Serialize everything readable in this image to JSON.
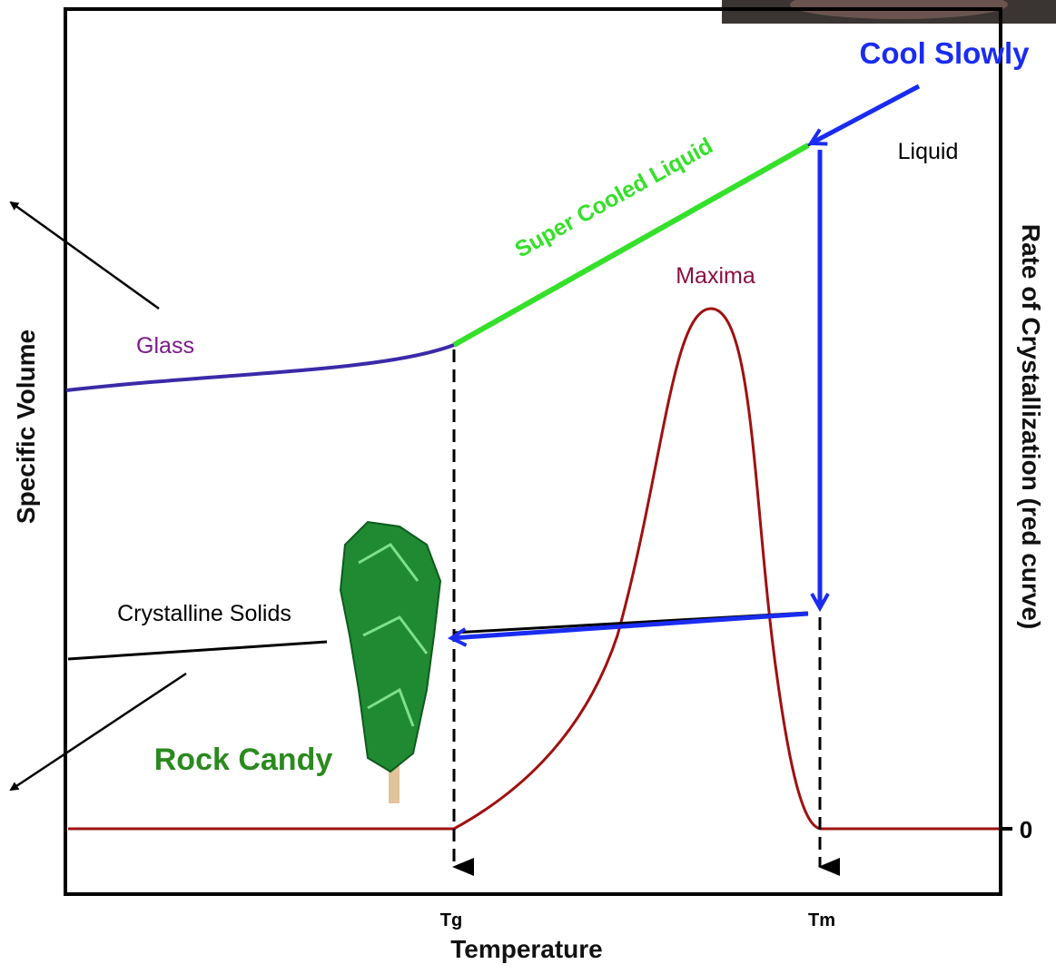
{
  "axes": {
    "x_label": "Temperature",
    "y_label": "Specific Volume",
    "y2_label": "Rate of Crystallization (red curve)",
    "x_ticks": [
      "Tg",
      "Tm"
    ],
    "y2_ticks": [
      "0"
    ]
  },
  "annotations": {
    "glass": "Glass",
    "super_cooled_liquid": "Super Cooled Liquid",
    "liquid": "Liquid",
    "maxima": "Maxima",
    "crystalline_solids": "Crystalline Solids",
    "rock_candy": "Rock Candy",
    "cool_slowly": "Cool Slowly"
  }
}
